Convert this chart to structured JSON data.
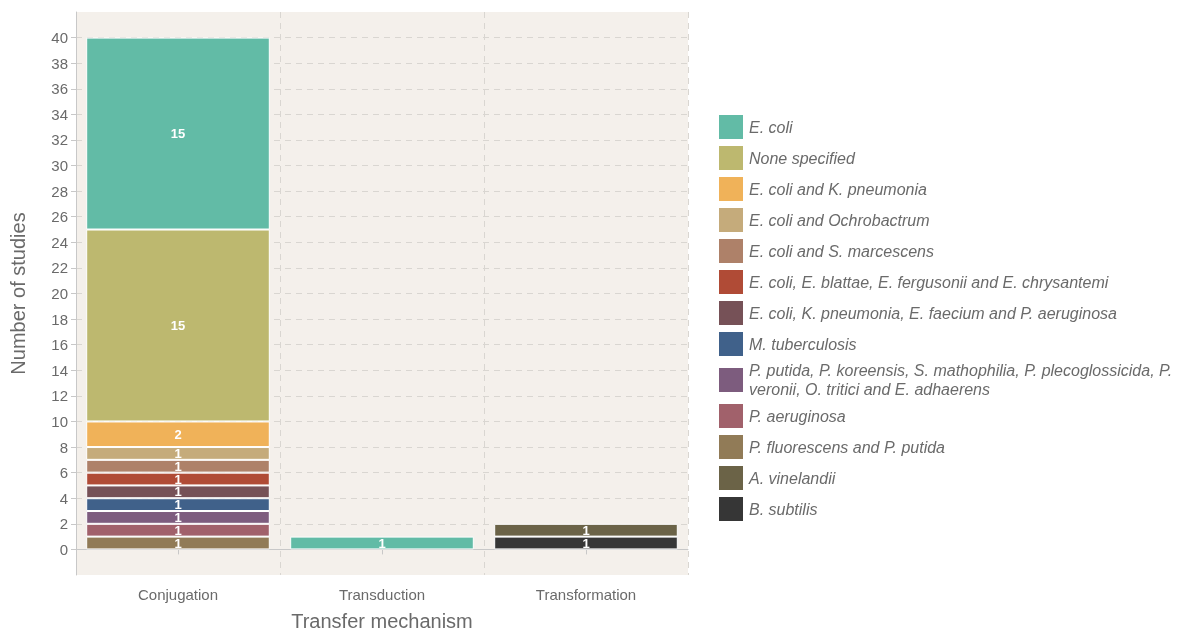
{
  "chart_data": {
    "type": "bar",
    "stacked": true,
    "xlabel": "Transfer mechanism",
    "ylabel": "Number of studies",
    "categories": [
      "Conjugation",
      "Transduction",
      "Transformation"
    ],
    "ylim": [
      -2,
      42
    ],
    "yticks": [
      0,
      2,
      4,
      6,
      8,
      10,
      12,
      14,
      16,
      18,
      20,
      22,
      24,
      26,
      28,
      30,
      32,
      34,
      36,
      38,
      40
    ],
    "grid": true,
    "legend": "right",
    "data_labels": true,
    "series": [
      {
        "name": "B. subtilis",
        "color": "#363636",
        "values": [
          null,
          null,
          1
        ]
      },
      {
        "name": "A. vinelandii",
        "color": "#6b6347",
        "values": [
          null,
          null,
          1
        ]
      },
      {
        "name": "P. fluorescens and P. putida",
        "color": "#917b57",
        "values": [
          1,
          null,
          null
        ]
      },
      {
        "name": "P. aeruginosa",
        "color": "#a1616b",
        "values": [
          1,
          null,
          null
        ]
      },
      {
        "name": "P. putida, P. koreensis, S. mathophilia, P. plecoglossicida, P. veronii, O. tritici and E. adhaerens",
        "color": "#7d5c7e",
        "values": [
          1,
          null,
          null
        ]
      },
      {
        "name": "M. tuberculosis",
        "color": "#40618a",
        "values": [
          1,
          null,
          null
        ]
      },
      {
        "name": "E. coli, K. pneumonia, E. faecium and P. aeruginosa",
        "color": "#765157",
        "values": [
          1,
          null,
          null
        ]
      },
      {
        "name": "E. coli, E. blattae, E. fergusonii and E. chrysantemi",
        "color": "#b04b36",
        "values": [
          1,
          null,
          null
        ]
      },
      {
        "name": "E. coli and S. marcescens",
        "color": "#ae8169",
        "values": [
          1,
          null,
          null
        ]
      },
      {
        "name": "E. coli and Ochrobactrum",
        "color": "#c5ab7b",
        "values": [
          1,
          null,
          null
        ]
      },
      {
        "name": "E. coli and K. pneumonia",
        "color": "#f0b259",
        "values": [
          2,
          null,
          null
        ]
      },
      {
        "name": "None specified",
        "color": "#bdb86f",
        "values": [
          15,
          null,
          null
        ]
      },
      {
        "name": "E. coli",
        "color": "#62bba6",
        "values": [
          15,
          1,
          null
        ]
      }
    ]
  }
}
